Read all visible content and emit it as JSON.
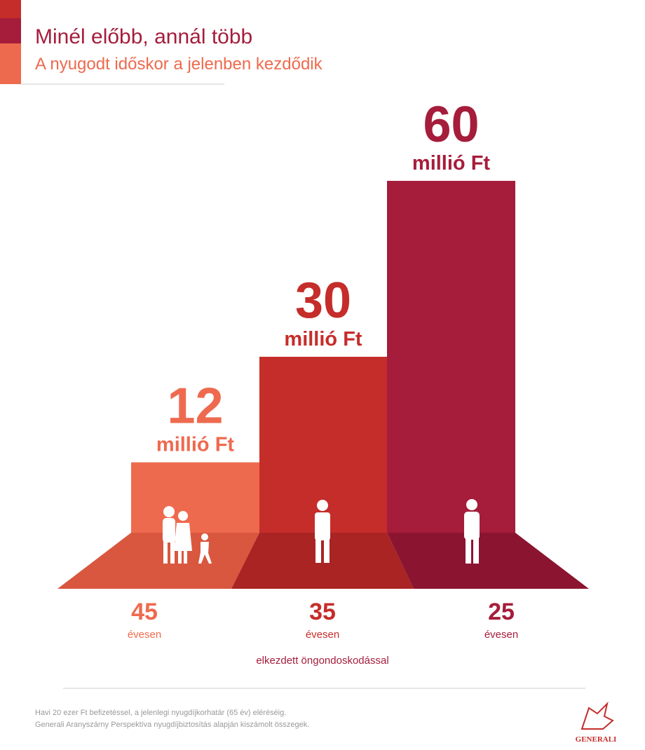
{
  "chart_data": {
    "type": "bar",
    "title": "Minél előbb, annál több",
    "subtitle": "A nyugodt időskor a jelenben kezdődik",
    "categories": [
      "45",
      "35",
      "25"
    ],
    "category_unit": "évesen",
    "x_label": "elkezdett öngondoskodással",
    "values": [
      12,
      30,
      60
    ],
    "value_unit": "millió Ft",
    "colors": [
      "#ee6a4e",
      "#c52d2a",
      "#a51d3b"
    ],
    "floor_colors": [
      "#d9573f",
      "#a92423",
      "#8b1531"
    ],
    "footnotes": [
      "Havi 20 ezer Ft befizetéssel, a jelenlegi nyugdíjkorhatár (65 év) eléréséig.",
      "Generali Aranyszárny Perspektíva nyugdíjbiztosítás alapján kiszámolt összegek."
    ],
    "logo": "GENERALI"
  }
}
